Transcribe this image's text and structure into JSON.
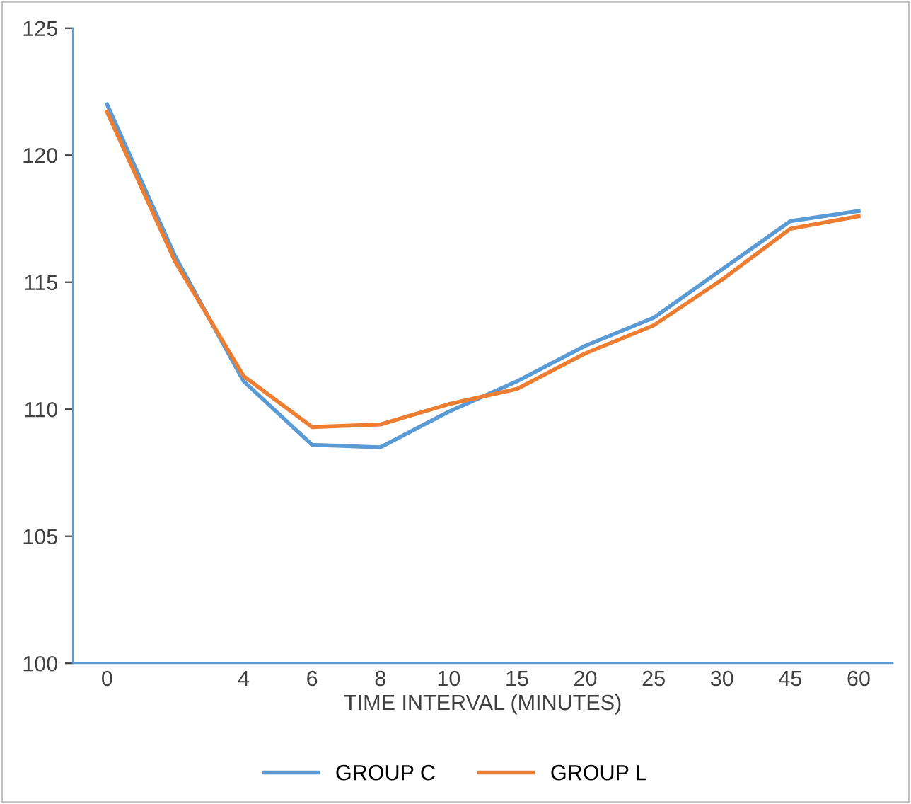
{
  "chart_data": {
    "type": "line",
    "xlabel": "TIME INTERVAL (MINUTES)",
    "categories": [
      "0",
      null,
      "4",
      "6",
      "8",
      "10",
      "15",
      "20",
      "25",
      "30",
      "45",
      "60"
    ],
    "series": [
      {
        "name": "GROUP C",
        "color": "#5b9bd5",
        "values": [
          122.0,
          116.0,
          111.1,
          108.6,
          108.5,
          109.9,
          111.1,
          112.5,
          113.6,
          115.5,
          117.4,
          117.8
        ]
      },
      {
        "name": "GROUP L",
        "color": "#ed7d31",
        "values": [
          121.7,
          115.8,
          111.3,
          109.3,
          109.4,
          110.2,
          110.8,
          112.2,
          113.3,
          115.1,
          117.1,
          117.6
        ]
      }
    ],
    "ylim": [
      100,
      125
    ],
    "yticks": [
      100,
      105,
      110,
      115,
      120,
      125
    ],
    "grid": false,
    "legend": "bottom",
    "marker": "none",
    "line_style": "solid"
  }
}
